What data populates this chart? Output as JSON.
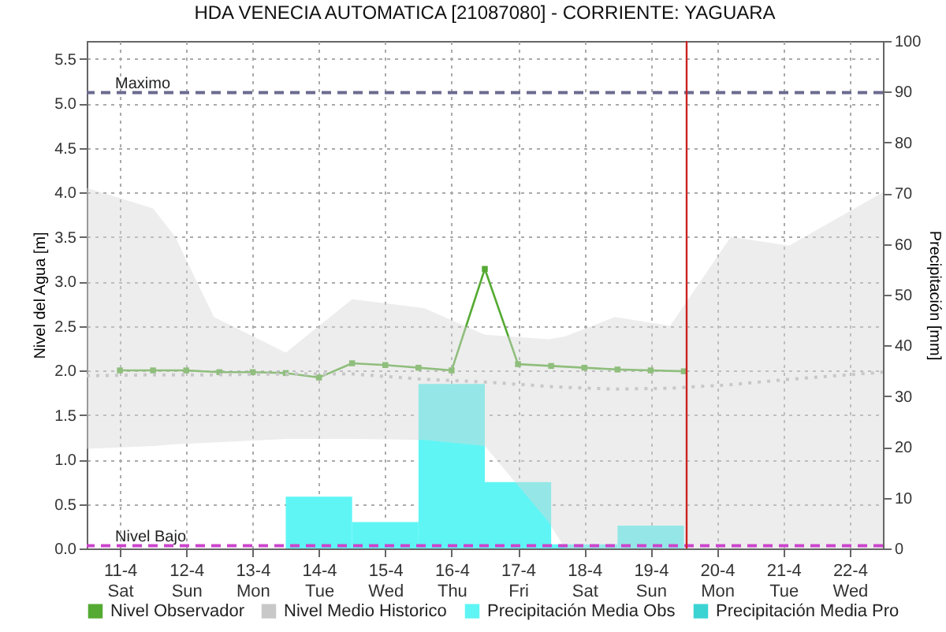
{
  "chart_data": {
    "type": "line",
    "title": "HDA VENECIA AUTOMATICA [21087080] - CORRIENTE: YAGUARA",
    "ylabel": "Nivel del Agua [m]",
    "y2label": "Precipitación [mm]",
    "xlim": [
      "--04-10T12:00",
      "--04-22T12:00"
    ],
    "xticks": [
      {
        "value": "--04-11",
        "label": "11-4\nSat"
      },
      {
        "value": "--04-12",
        "label": "12-4\nSun"
      },
      {
        "value": "--04-13",
        "label": "13-4\nMon"
      },
      {
        "value": "--04-14",
        "label": "14-4\nTue"
      },
      {
        "value": "--04-15",
        "label": "15-4\nWed"
      },
      {
        "value": "--04-16",
        "label": "16-4\nThu"
      },
      {
        "value": "--04-17",
        "label": "17-4\nFri"
      },
      {
        "value": "--04-18",
        "label": "18-4\nSat"
      },
      {
        "value": "--04-19",
        "label": "19-4\nSun"
      },
      {
        "value": "--04-20",
        "label": "20-4\nMon"
      },
      {
        "value": "--04-21",
        "label": "21-4\nTue"
      },
      {
        "value": "--04-22",
        "label": "22-4\nWed"
      }
    ],
    "ylim": [
      0,
      5.7
    ],
    "yticks": [
      {
        "value": 0,
        "label": "0.0"
      },
      0.5,
      {
        "value": 1,
        "label": "1.0"
      },
      1.5,
      {
        "value": 2,
        "label": "2.0"
      },
      2.5,
      {
        "value": 3,
        "label": "3.0"
      },
      3.5,
      {
        "value": 4,
        "label": "4.0"
      },
      4.5,
      {
        "value": 5,
        "label": "5.0"
      },
      5.5
    ],
    "y2lim": [
      0,
      100
    ],
    "y2ticks": [
      0,
      10,
      20,
      30,
      40,
      50,
      60,
      70,
      80,
      90,
      100
    ],
    "grid": true,
    "legend": "bottom",
    "series": [
      {
        "name": "Nivel Observador",
        "color": "#55aa33",
        "line_style": "solid",
        "marker": "square",
        "x": [
          "--04-11T00:00",
          "--04-11T12:00",
          "--04-12T00:00",
          "--04-12T12:00",
          "--04-13T00:00",
          "--04-13T12:00",
          "--04-14T00:00",
          "--04-14T12:00",
          "--04-15T00:00",
          "--04-15T12:00",
          "--04-16T00:00",
          "--04-16T12:00",
          "--04-17T00:00",
          "--04-17T12:00",
          "--04-18T00:00",
          "--04-18T12:00",
          "--04-19T00:00",
          "--04-19T12:00"
        ],
        "values": [
          2.0,
          2.0,
          2.0,
          1.98,
          1.98,
          1.97,
          1.92,
          2.08,
          2.06,
          2.03,
          2.0,
          3.14,
          2.07,
          2.05,
          2.03,
          2.01,
          2.0,
          1.99
        ]
      },
      {
        "name": "Nivel Medio Historico",
        "color": "#c8c8c8",
        "line_style": "dotted",
        "marker": "none",
        "x": [
          "--04-10T12:00",
          "--04-11T12:00",
          "--04-11T20:00",
          "--04-12T10:00",
          "--04-13T12:00",
          "--04-14T12:00",
          "--04-15T14:00",
          "--04-16T12:00",
          "--04-17T11:00",
          "--04-17T17:00",
          "--04-18T11:00",
          "--04-19T07:00",
          "--04-20T05:00",
          "--04-21T02:00",
          "--04-22T12:00"
        ],
        "values": [
          1.94,
          1.95,
          1.95,
          1.95,
          1.96,
          1.96,
          1.9,
          1.87,
          1.82,
          1.81,
          1.79,
          1.8,
          1.84,
          1.9,
          1.98
        ],
        "lower": [
          1.12,
          1.15,
          1.17,
          1.19,
          1.23,
          1.23,
          1.22,
          1.15,
          0.3,
          0,
          0,
          0,
          0,
          0,
          0
        ],
        "upper": [
          4.05,
          3.82,
          3.5,
          2.6,
          2.2,
          2.8,
          2.7,
          2.4,
          2.35,
          2.38,
          2.6,
          2.5,
          3.5,
          3.4,
          4.0
        ]
      },
      {
        "name": "Precipitación Media Obs",
        "type": "bar",
        "axis": "y2",
        "color": "#5ff5f5",
        "x": [
          "--04-14",
          "--04-15",
          "--04-16",
          "--04-17",
          "--04-18",
          "--04-19"
        ],
        "values": [
          10.2,
          5.2,
          32.4,
          13.1,
          0.8,
          4.5
        ]
      },
      {
        "name": "Precipitación Media Pro",
        "type": "bar",
        "axis": "y2",
        "color": "#3cd3d3"
      }
    ],
    "ref_lines": [
      {
        "axis": "y",
        "value": 5.12,
        "label": "Maximo",
        "color": "#6b6b8f",
        "line_style": "dashed"
      },
      {
        "axis": "y",
        "value": 0.03,
        "label": "Nivel Bajo",
        "color": "#cc44cc",
        "line_style": "dashed"
      },
      {
        "axis": "x",
        "value": "--04-19T13:00",
        "color": "#cc2222",
        "line_style": "solid"
      }
    ]
  }
}
